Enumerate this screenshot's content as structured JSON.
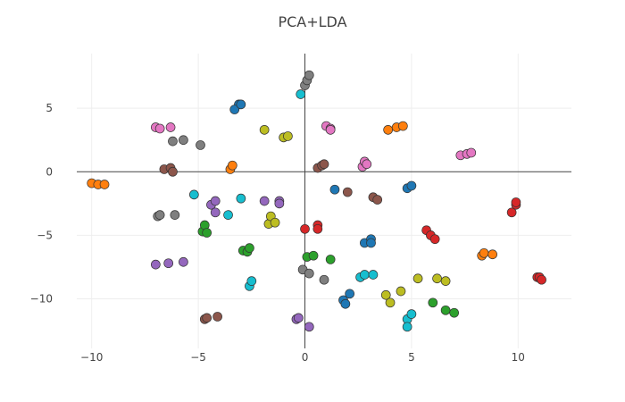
{
  "chart_data": {
    "type": "scatter",
    "title": "PCA+LDA",
    "xlabel": "",
    "ylabel": "",
    "xlim": [
      -10.7,
      12.5
    ],
    "ylim": [
      -13.9,
      9.3
    ],
    "xticks": [
      -10,
      -5,
      0,
      5,
      10
    ],
    "yticks": [
      -10,
      -5,
      0,
      5
    ],
    "xtick_labels": [
      "−10",
      "−5",
      "0",
      "5",
      "10"
    ],
    "ytick_labels": [
      "−10",
      "−5",
      "0",
      "5"
    ],
    "grid": true,
    "legend": "none",
    "series": [
      {
        "color": "#1f77b4",
        "points": [
          [
            -3.1,
            5.3
          ],
          [
            -3.3,
            4.9
          ],
          [
            -3.0,
            5.3
          ],
          [
            1.4,
            -1.4
          ],
          [
            4.8,
            -1.3
          ],
          [
            5.0,
            -1.1
          ],
          [
            2.8,
            -5.6
          ],
          [
            3.1,
            -5.3
          ],
          [
            3.1,
            -5.6
          ],
          [
            1.8,
            -10.1
          ],
          [
            1.9,
            -10.4
          ],
          [
            2.1,
            -9.6
          ]
        ]
      },
      {
        "color": "#ff7f0e",
        "points": [
          [
            -10.0,
            -0.9
          ],
          [
            -9.7,
            -1.0
          ],
          [
            -9.4,
            -1.0
          ],
          [
            -3.5,
            0.2
          ],
          [
            -3.4,
            0.5
          ],
          [
            3.9,
            3.3
          ],
          [
            4.3,
            3.5
          ],
          [
            4.6,
            3.6
          ],
          [
            8.3,
            -6.6
          ],
          [
            8.4,
            -6.4
          ],
          [
            8.8,
            -6.5
          ]
        ]
      },
      {
        "color": "#2ca02c",
        "points": [
          [
            -4.8,
            -4.7
          ],
          [
            -4.7,
            -4.2
          ],
          [
            -4.6,
            -4.8
          ],
          [
            -2.9,
            -6.2
          ],
          [
            -2.7,
            -6.3
          ],
          [
            -2.6,
            -6.0
          ],
          [
            0.1,
            -6.7
          ],
          [
            0.4,
            -6.6
          ],
          [
            1.2,
            -6.9
          ],
          [
            6.0,
            -10.3
          ],
          [
            6.6,
            -10.9
          ],
          [
            7.0,
            -11.1
          ]
        ]
      },
      {
        "color": "#d62728",
        "points": [
          [
            0.0,
            -4.5
          ],
          [
            0.6,
            -4.2
          ],
          [
            0.6,
            -4.5
          ],
          [
            5.7,
            -4.6
          ],
          [
            5.9,
            -5.0
          ],
          [
            6.1,
            -5.3
          ],
          [
            9.7,
            -3.2
          ],
          [
            9.9,
            -2.6
          ],
          [
            9.9,
            -2.4
          ],
          [
            10.9,
            -8.3
          ],
          [
            11.0,
            -8.3
          ],
          [
            11.1,
            -8.5
          ]
        ]
      },
      {
        "color": "#9467bd",
        "points": [
          [
            -7.0,
            -7.3
          ],
          [
            -6.4,
            -7.2
          ],
          [
            -5.7,
            -7.1
          ],
          [
            -4.4,
            -2.6
          ],
          [
            -4.2,
            -3.2
          ],
          [
            -4.2,
            -2.3
          ],
          [
            -1.9,
            -2.3
          ],
          [
            -1.2,
            -2.3
          ],
          [
            -1.2,
            -2.5
          ],
          [
            -0.4,
            -11.6
          ],
          [
            -0.3,
            -11.5
          ],
          [
            0.2,
            -12.2
          ]
        ]
      },
      {
        "color": "#8c564b",
        "points": [
          [
            -6.6,
            0.2
          ],
          [
            -6.3,
            0.3
          ],
          [
            -6.2,
            0.0
          ],
          [
            0.6,
            0.3
          ],
          [
            0.8,
            0.5
          ],
          [
            0.9,
            0.6
          ],
          [
            2.0,
            -1.6
          ],
          [
            3.2,
            -2.0
          ],
          [
            3.4,
            -2.2
          ],
          [
            -4.7,
            -11.6
          ],
          [
            -4.6,
            -11.5
          ],
          [
            -4.1,
            -11.4
          ]
        ]
      },
      {
        "color": "#e377c2",
        "points": [
          [
            -7.0,
            3.5
          ],
          [
            -6.8,
            3.4
          ],
          [
            -6.3,
            3.5
          ],
          [
            1.0,
            3.6
          ],
          [
            1.2,
            3.4
          ],
          [
            1.2,
            3.3
          ],
          [
            2.7,
            0.4
          ],
          [
            2.8,
            0.8
          ],
          [
            2.9,
            0.6
          ],
          [
            7.3,
            1.3
          ],
          [
            7.6,
            1.4
          ],
          [
            7.8,
            1.5
          ]
        ]
      },
      {
        "color": "#7f7f7f",
        "points": [
          [
            -6.2,
            2.4
          ],
          [
            -5.7,
            2.5
          ],
          [
            -4.9,
            2.1
          ],
          [
            0.0,
            6.8
          ],
          [
            0.1,
            7.2
          ],
          [
            0.2,
            7.6
          ],
          [
            -6.9,
            -3.5
          ],
          [
            -6.8,
            -3.4
          ],
          [
            -6.1,
            -3.4
          ],
          [
            -0.1,
            -7.7
          ],
          [
            0.2,
            -8.0
          ],
          [
            0.9,
            -8.5
          ]
        ]
      },
      {
        "color": "#bcbd22",
        "points": [
          [
            -1.9,
            3.3
          ],
          [
            -1.0,
            2.7
          ],
          [
            -0.8,
            2.8
          ],
          [
            -1.7,
            -4.1
          ],
          [
            -1.6,
            -3.5
          ],
          [
            -1.4,
            -4.0
          ],
          [
            3.8,
            -9.7
          ],
          [
            4.0,
            -10.3
          ],
          [
            4.5,
            -9.4
          ],
          [
            5.3,
            -8.4
          ],
          [
            6.2,
            -8.4
          ],
          [
            6.6,
            -8.6
          ]
        ]
      },
      {
        "color": "#17becf",
        "points": [
          [
            -0.2,
            6.1
          ],
          [
            -5.2,
            -1.8
          ],
          [
            -3.6,
            -3.4
          ],
          [
            -3.0,
            -2.1
          ],
          [
            -2.6,
            -9.0
          ],
          [
            -2.5,
            -8.6
          ],
          [
            2.6,
            -8.3
          ],
          [
            2.8,
            -8.1
          ],
          [
            3.2,
            -8.1
          ],
          [
            4.8,
            -11.6
          ],
          [
            4.8,
            -12.2
          ],
          [
            5.0,
            -11.2
          ]
        ]
      }
    ]
  }
}
